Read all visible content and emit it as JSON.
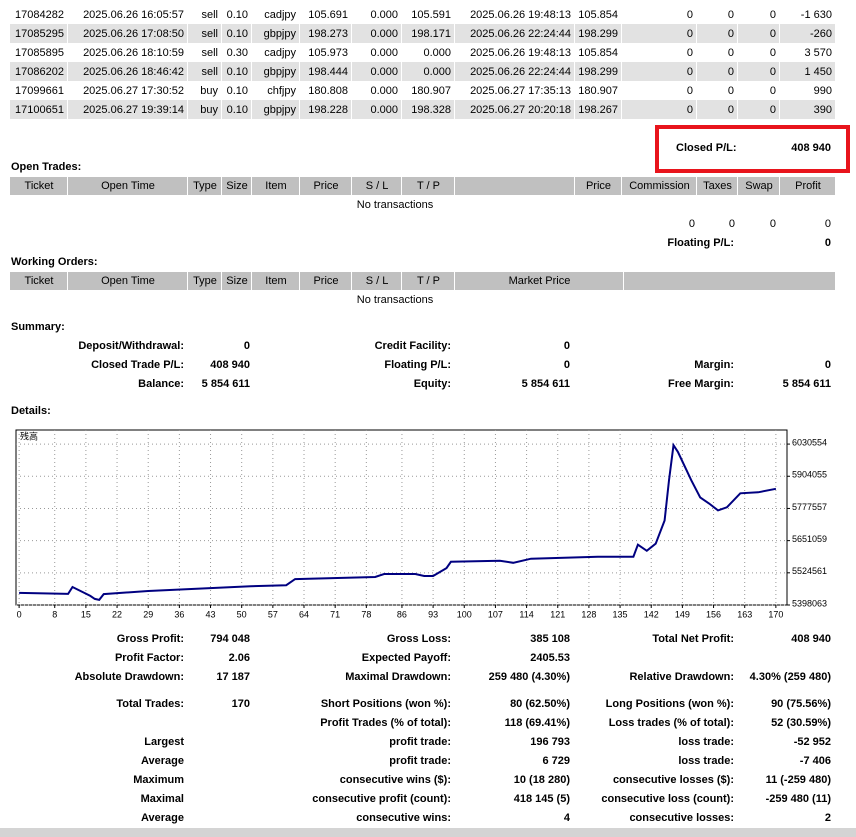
{
  "closed_trades": {
    "rows": [
      [
        "17084282",
        "2025.06.26 16:05:57",
        "sell",
        "0.10",
        "cadjpy",
        "105.691",
        "0.000",
        "105.591",
        "2025.06.26 19:48:13",
        "105.854",
        "0",
        "0",
        "0",
        "-1 630"
      ],
      [
        "17085295",
        "2025.06.26 17:08:50",
        "sell",
        "0.10",
        "gbpjpy",
        "198.273",
        "0.000",
        "198.171",
        "2025.06.26 22:24:44",
        "198.299",
        "0",
        "0",
        "0",
        "-260"
      ],
      [
        "17085895",
        "2025.06.26 18:10:59",
        "sell",
        "0.30",
        "cadjpy",
        "105.973",
        "0.000",
        "0.000",
        "2025.06.26 19:48:13",
        "105.854",
        "0",
        "0",
        "0",
        "3 570"
      ],
      [
        "17086202",
        "2025.06.26 18:46:42",
        "sell",
        "0.10",
        "gbpjpy",
        "198.444",
        "0.000",
        "0.000",
        "2025.06.26 22:24:44",
        "198.299",
        "0",
        "0",
        "0",
        "1 450"
      ],
      [
        "17099661",
        "2025.06.27 17:30:52",
        "buy",
        "0.10",
        "chfjpy",
        "180.808",
        "0.000",
        "180.907",
        "2025.06.27 17:35:13",
        "180.907",
        "0",
        "0",
        "0",
        "990"
      ],
      [
        "17100651",
        "2025.06.27 19:39:14",
        "buy",
        "0.10",
        "gbpjpy",
        "198.228",
        "0.000",
        "198.328",
        "2025.06.27 20:20:18",
        "198.267",
        "0",
        "0",
        "0",
        "390"
      ]
    ]
  },
  "closed_pl": {
    "label": "Closed P/L:",
    "value": "408 940"
  },
  "open_trades": {
    "title": "Open Trades:",
    "headers": [
      "Ticket",
      "Open Time",
      "Type",
      "Size",
      "Item",
      "Price",
      "S / L",
      "T / P",
      "Price",
      "Commission",
      "Taxes",
      "Swap",
      "Profit"
    ],
    "empty": "No transactions",
    "totals": [
      "0",
      "0",
      "0",
      "0"
    ],
    "floating": {
      "label": "Floating P/L:",
      "value": "0"
    }
  },
  "working_orders": {
    "title": "Working Orders:",
    "headers": [
      "Ticket",
      "Open Time",
      "Type",
      "Size",
      "Item",
      "Price",
      "S / L",
      "T / P",
      "Market Price"
    ],
    "empty": "No transactions"
  },
  "summary": {
    "title": "Summary:",
    "rows": [
      {
        "l": {
          "label": "Deposit/Withdrawal:",
          "value": "0"
        },
        "m": {
          "label": "Credit Facility:",
          "value": "0"
        }
      },
      {
        "l": {
          "label": "Closed Trade P/L:",
          "value": "408 940"
        },
        "m": {
          "label": "Floating P/L:",
          "value": "0"
        },
        "r": {
          "label": "Margin:",
          "value": "0"
        }
      },
      {
        "l": {
          "label": "Balance:",
          "value": "5 854 611"
        },
        "m": {
          "label": "Equity:",
          "value": "5 854 611"
        },
        "r": {
          "label": "Free Margin:",
          "value": "5 854 611"
        }
      }
    ]
  },
  "details": {
    "title": "Details:"
  },
  "chart_data": {
    "type": "line",
    "ylabel": "残高",
    "x": [
      0,
      11,
      12,
      16,
      17,
      18,
      19,
      29,
      52,
      60,
      62,
      80,
      82,
      89,
      91,
      93,
      96,
      97,
      108,
      111,
      115,
      130,
      138,
      139,
      141,
      143,
      145,
      146,
      147,
      148,
      151,
      153,
      155,
      157,
      159,
      162,
      166,
      170
    ],
    "series": [
      {
        "color": "#000080",
        "values": [
          5445671,
          5441500,
          5469000,
          5434000,
          5422000,
          5418000,
          5441000,
          5453000,
          5472000,
          5476000,
          5500000,
          5508000,
          5520000,
          5520000,
          5512000,
          5512000,
          5543000,
          5568000,
          5572000,
          5564000,
          5580000,
          5588000,
          5588000,
          5635000,
          5611000,
          5639000,
          5730000,
          5888000,
          6026000,
          6000000,
          5888000,
          5821000,
          5797000,
          5770000,
          5782000,
          5837000,
          5841000,
          5854611
        ]
      }
    ],
    "xlim": [
      -0.7,
      172.5
    ],
    "ylim": [
      5398063,
      6085885
    ],
    "xticks": [
      0,
      8,
      15,
      22,
      29,
      36,
      43,
      50,
      57,
      64,
      71,
      78,
      86,
      93,
      100,
      107,
      114,
      121,
      128,
      135,
      142,
      149,
      156,
      163,
      170
    ],
    "yticks": [
      6030554,
      5904055,
      5777557,
      5651059,
      5524561,
      5398063
    ],
    "grid": true
  },
  "stats": [
    {
      "l": {
        "label": "Gross Profit:",
        "value": "794 048"
      },
      "m": {
        "label": "Gross Loss:",
        "value": "385 108"
      },
      "r": {
        "label": "Total Net Profit:",
        "value": "408 940"
      }
    },
    {
      "l": {
        "label": "Profit Factor:",
        "value": "2.06"
      },
      "m": {
        "label": "Expected Payoff:",
        "value": "2405.53"
      }
    },
    {
      "l": {
        "label": "Absolute Drawdown:",
        "value": "17 187"
      },
      "m": {
        "label": "Maximal Drawdown:",
        "value": "259 480 (4.30%)"
      },
      "r": {
        "label": "Relative Drawdown:",
        "value": "4.30% (259 480)"
      }
    },
    {
      "l": {
        "label": "Total Trades:",
        "value": "170"
      },
      "m": {
        "label": "Short Positions (won %):",
        "value": "80 (62.50%)"
      },
      "r": {
        "label": "Long Positions (won %):",
        "value": "90 (75.56%)"
      }
    },
    {
      "m": {
        "label": "Profit Trades (% of total):",
        "value": "118 (69.41%)"
      },
      "r": {
        "label": "Loss trades (% of total):",
        "value": "52 (30.59%)"
      }
    },
    {
      "l": {
        "label": "Largest"
      },
      "m": {
        "label": "profit trade:",
        "value": "196 793"
      },
      "r": {
        "label": "loss trade:",
        "value": "-52 952"
      }
    },
    {
      "l": {
        "label": "Average"
      },
      "m": {
        "label": "profit trade:",
        "value": "6 729"
      },
      "r": {
        "label": "loss trade:",
        "value": "-7 406"
      }
    },
    {
      "l": {
        "label": "Maximum"
      },
      "m": {
        "label": "consecutive wins ($):",
        "value": "10 (18 280)"
      },
      "r": {
        "label": "consecutive losses ($):",
        "value": "11 (-259 480)"
      }
    },
    {
      "l": {
        "label": "Maximal"
      },
      "m": {
        "label": "consecutive profit (count):",
        "value": "418 145 (5)"
      },
      "r": {
        "label": "consecutive loss (count):",
        "value": "-259 480 (11)"
      }
    },
    {
      "l": {
        "label": "Average"
      },
      "m": {
        "label": "consecutive wins:",
        "value": "4"
      },
      "r": {
        "label": "consecutive losses:",
        "value": "2"
      }
    }
  ]
}
